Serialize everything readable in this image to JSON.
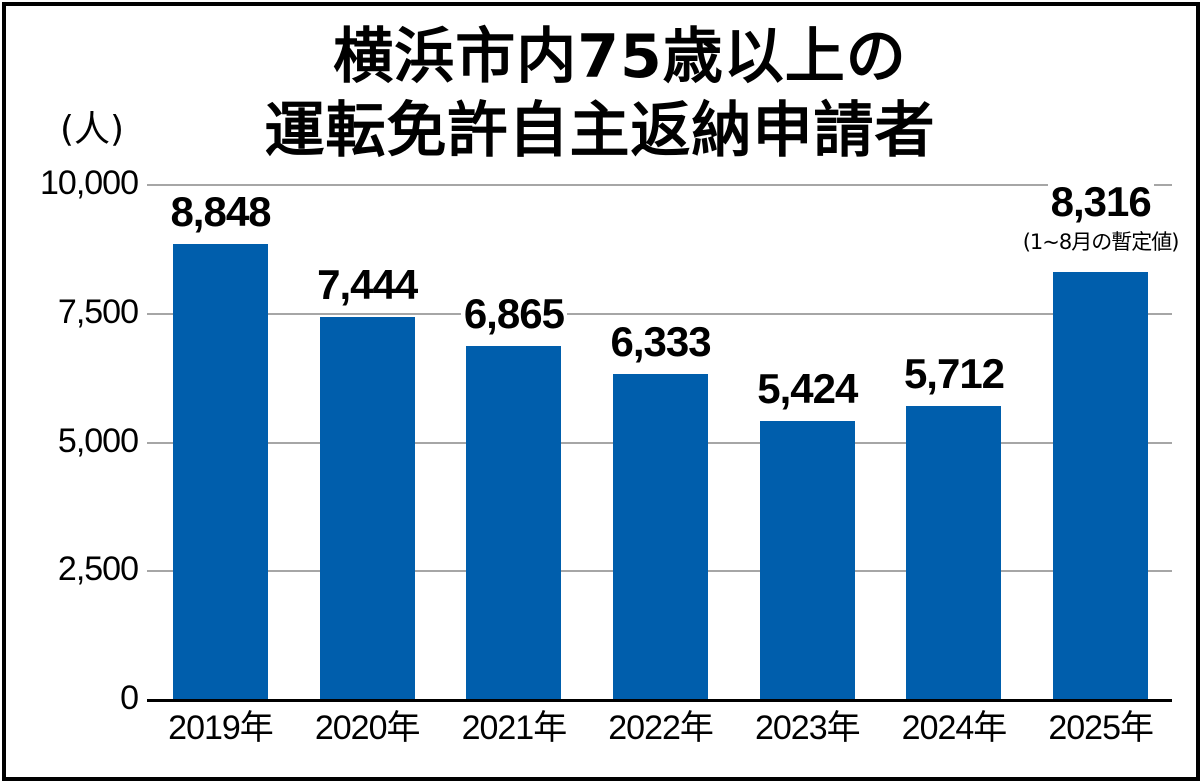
{
  "chart_data": {
    "type": "bar",
    "title": "横浜市内75歳以上の運転免許自主返納申請者",
    "title_lines": [
      "横浜市内75歳以上の",
      "運転免許自主返納申請者"
    ],
    "ylabel": "(人)",
    "xlabel": "",
    "categories": [
      "2019年",
      "2020年",
      "2021年",
      "2022年",
      "2023年",
      "2024年",
      "2025年"
    ],
    "values": [
      8848,
      7444,
      6865,
      6333,
      5424,
      5712,
      8316
    ],
    "value_labels": [
      "8,848",
      "7,444",
      "6,865",
      "6,333",
      "5,424",
      "5,712",
      "8,316"
    ],
    "annotations": [
      {
        "category": "2025年",
        "text": "(1~8月の暫定値)"
      }
    ],
    "ylim": [
      0,
      10000
    ],
    "yticks": [
      0,
      2500,
      5000,
      7500,
      10000
    ],
    "ytick_labels": [
      "0",
      "2,500",
      "5,000",
      "7,500",
      "10,000"
    ],
    "grid": true,
    "legend": null,
    "bar_color": "#005eac"
  }
}
